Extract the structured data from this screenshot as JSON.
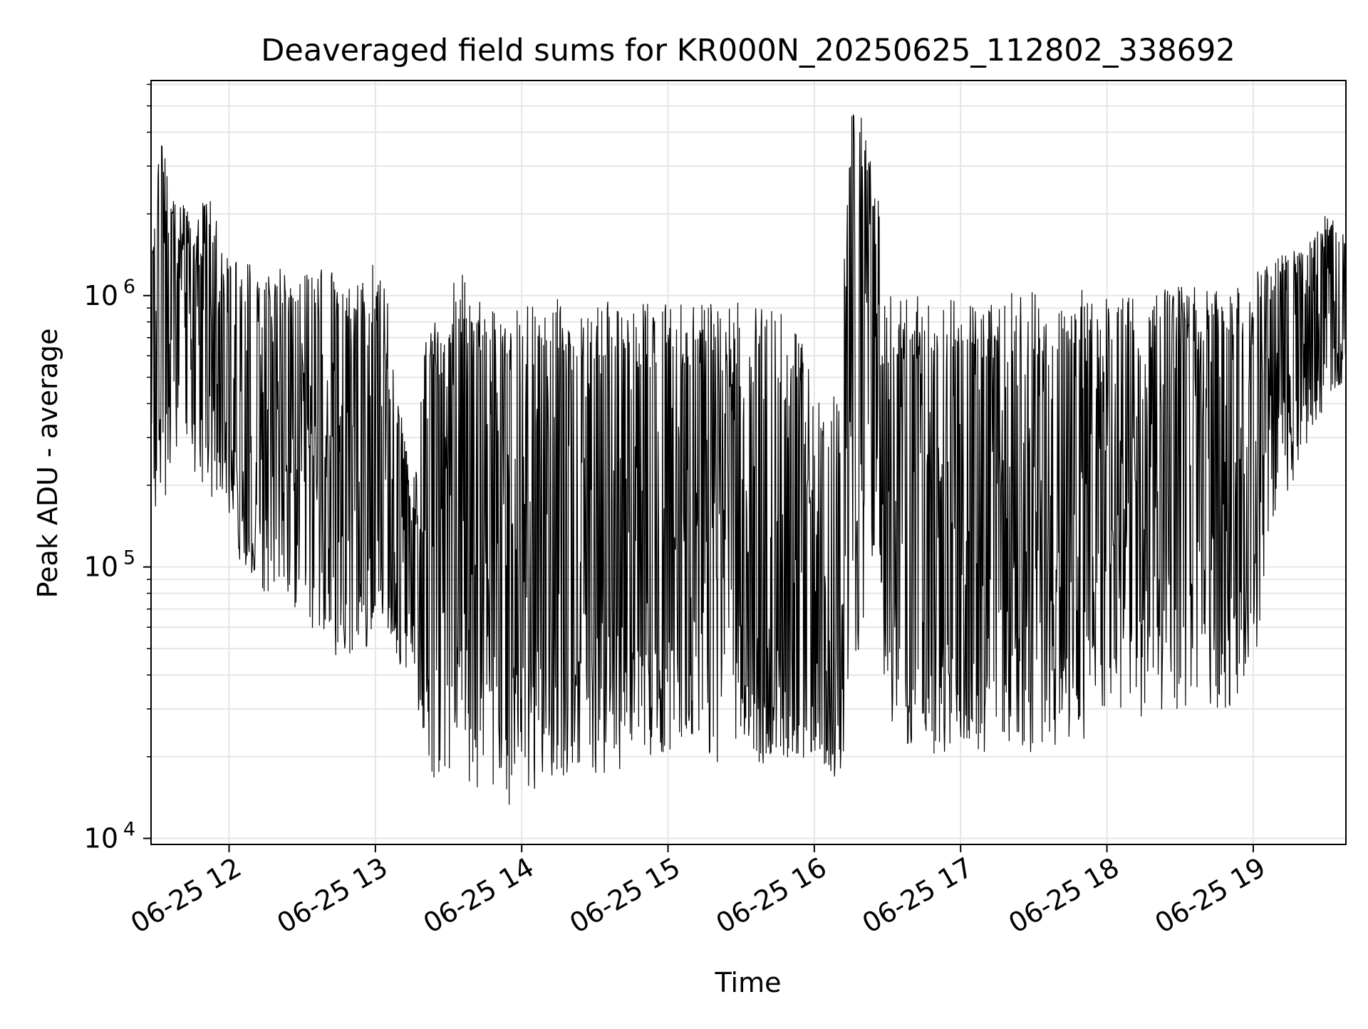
{
  "chart_data": {
    "type": "line",
    "title": "Deaveraged field sums for KR000N_20250625_112802_338692",
    "xlabel": "Time",
    "ylabel": "Peak ADU - average",
    "yscale": "log",
    "xlim": [
      "2025-06-25 11:28",
      "2025-06-25 19:38"
    ],
    "ylim": [
      9500,
      6200000
    ],
    "grid": true,
    "line_color": "#000000",
    "x_ticks": [
      {
        "t": "2025-06-25 12:00",
        "label": "06-25 12"
      },
      {
        "t": "2025-06-25 13:00",
        "label": "06-25 13"
      },
      {
        "t": "2025-06-25 14:00",
        "label": "06-25 14"
      },
      {
        "t": "2025-06-25 15:00",
        "label": "06-25 15"
      },
      {
        "t": "2025-06-25 16:00",
        "label": "06-25 16"
      },
      {
        "t": "2025-06-25 17:00",
        "label": "06-25 17"
      },
      {
        "t": "2025-06-25 18:00",
        "label": "06-25 18"
      },
      {
        "t": "2025-06-25 19:00",
        "label": "06-25 19"
      }
    ],
    "y_ticks": [
      {
        "value": 10000,
        "base": "10",
        "exp": "4"
      },
      {
        "value": 100000,
        "base": "10",
        "exp": "5"
      },
      {
        "value": 1000000,
        "base": "10",
        "exp": "6"
      }
    ],
    "series": [
      {
        "x": [
          "2025-06-25 11:28",
          "2025-06-25 11:32",
          "2025-06-25 11:36",
          "2025-06-25 11:40",
          "2025-06-25 11:44",
          "2025-06-25 11:48",
          "2025-06-25 11:52",
          "2025-06-25 11:56",
          "2025-06-25 12:00",
          "2025-06-25 12:05",
          "2025-06-25 12:10",
          "2025-06-25 12:15",
          "2025-06-25 12:20",
          "2025-06-25 12:25",
          "2025-06-25 12:30",
          "2025-06-25 12:35",
          "2025-06-25 12:40",
          "2025-06-25 12:45",
          "2025-06-25 12:50",
          "2025-06-25 12:55",
          "2025-06-25 13:00",
          "2025-06-25 13:05",
          "2025-06-25 13:10",
          "2025-06-25 13:15",
          "2025-06-25 13:20",
          "2025-06-25 13:25",
          "2025-06-25 13:30",
          "2025-06-25 13:35",
          "2025-06-25 13:40",
          "2025-06-25 13:45",
          "2025-06-25 13:50",
          "2025-06-25 13:55",
          "2025-06-25 14:00",
          "2025-06-25 14:10",
          "2025-06-25 14:20",
          "2025-06-25 14:30",
          "2025-06-25 14:40",
          "2025-06-25 14:50",
          "2025-06-25 15:00",
          "2025-06-25 15:10",
          "2025-06-25 15:20",
          "2025-06-25 15:30",
          "2025-06-25 15:40",
          "2025-06-25 15:50",
          "2025-06-25 16:00",
          "2025-06-25 16:05",
          "2025-06-25 16:10",
          "2025-06-25 16:15",
          "2025-06-25 16:20",
          "2025-06-25 16:25",
          "2025-06-25 16:30",
          "2025-06-25 16:35",
          "2025-06-25 16:40",
          "2025-06-25 16:50",
          "2025-06-25 17:00",
          "2025-06-25 17:10",
          "2025-06-25 17:20",
          "2025-06-25 17:30",
          "2025-06-25 17:40",
          "2025-06-25 17:50",
          "2025-06-25 18:00",
          "2025-06-25 18:10",
          "2025-06-25 18:20",
          "2025-06-25 18:30",
          "2025-06-25 18:40",
          "2025-06-25 18:50",
          "2025-06-25 19:00",
          "2025-06-25 19:10",
          "2025-06-25 19:20",
          "2025-06-25 19:30",
          "2025-06-25 19:38"
        ],
        "low": [
          150000,
          150000,
          200000,
          250000,
          250000,
          200000,
          180000,
          150000,
          150000,
          100000,
          90000,
          80000,
          75000,
          65000,
          60000,
          55000,
          50000,
          45000,
          35000,
          40000,
          70000,
          60000,
          40000,
          40000,
          20000,
          16000,
          16000,
          22000,
          14000,
          16000,
          15000,
          13000,
          13000,
          14000,
          16000,
          17000,
          18000,
          18000,
          19000,
          19000,
          19000,
          20000,
          18000,
          20000,
          19000,
          17000,
          16000,
          30000,
          60000,
          100000,
          25000,
          22000,
          20000,
          20000,
          20000,
          20000,
          20000,
          20000,
          22000,
          22000,
          25000,
          27000,
          28000,
          28000,
          30000,
          30000,
          40000,
          150000,
          250000,
          400000,
          500000
        ],
        "high": [
          1200000,
          4500000,
          2300000,
          2200000,
          2100000,
          2000000,
          3500000,
          1500000,
          1400000,
          1400000,
          1300000,
          1300000,
          1300000,
          1200000,
          1200000,
          1200000,
          1300000,
          1300000,
          1300000,
          1300000,
          1300000,
          1000000,
          400000,
          200000,
          900000,
          900000,
          900000,
          1500000,
          1000000,
          950000,
          900000,
          850000,
          900000,
          1000000,
          1000000,
          950000,
          950000,
          950000,
          950000,
          950000,
          950000,
          950000,
          1000000,
          1000000,
          450000,
          350000,
          500000,
          4800000,
          4600000,
          3200000,
          1000000,
          1000000,
          1000000,
          1000000,
          1000000,
          1000000,
          1050000,
          1050000,
          1000000,
          1050000,
          1000000,
          1000000,
          1050000,
          1100000,
          1100000,
          1100000,
          1200000,
          1400000,
          1500000,
          2000000,
          1700000
        ],
        "mid": [
          900000,
          1500000,
          1100000,
          800000,
          700000,
          650000,
          650000,
          600000,
          650000,
          550000,
          550000,
          500000,
          450000,
          450000,
          400000,
          400000,
          380000,
          350000,
          300000,
          300000,
          280000,
          150000,
          100000,
          80000,
          150000,
          180000,
          200000,
          250000,
          250000,
          250000,
          250000,
          250000,
          250000,
          250000,
          250000,
          250000,
          250000,
          250000,
          240000,
          220000,
          180000,
          120000,
          80000,
          50000,
          35000,
          30000,
          30000,
          1500000,
          1300000,
          1000000,
          300000,
          250000,
          250000,
          250000,
          250000,
          250000,
          250000,
          250000,
          250000,
          250000,
          260000,
          270000,
          280000,
          300000,
          320000,
          350000,
          450000,
          600000,
          900000,
          1200000,
          1200000
        ]
      }
    ]
  }
}
